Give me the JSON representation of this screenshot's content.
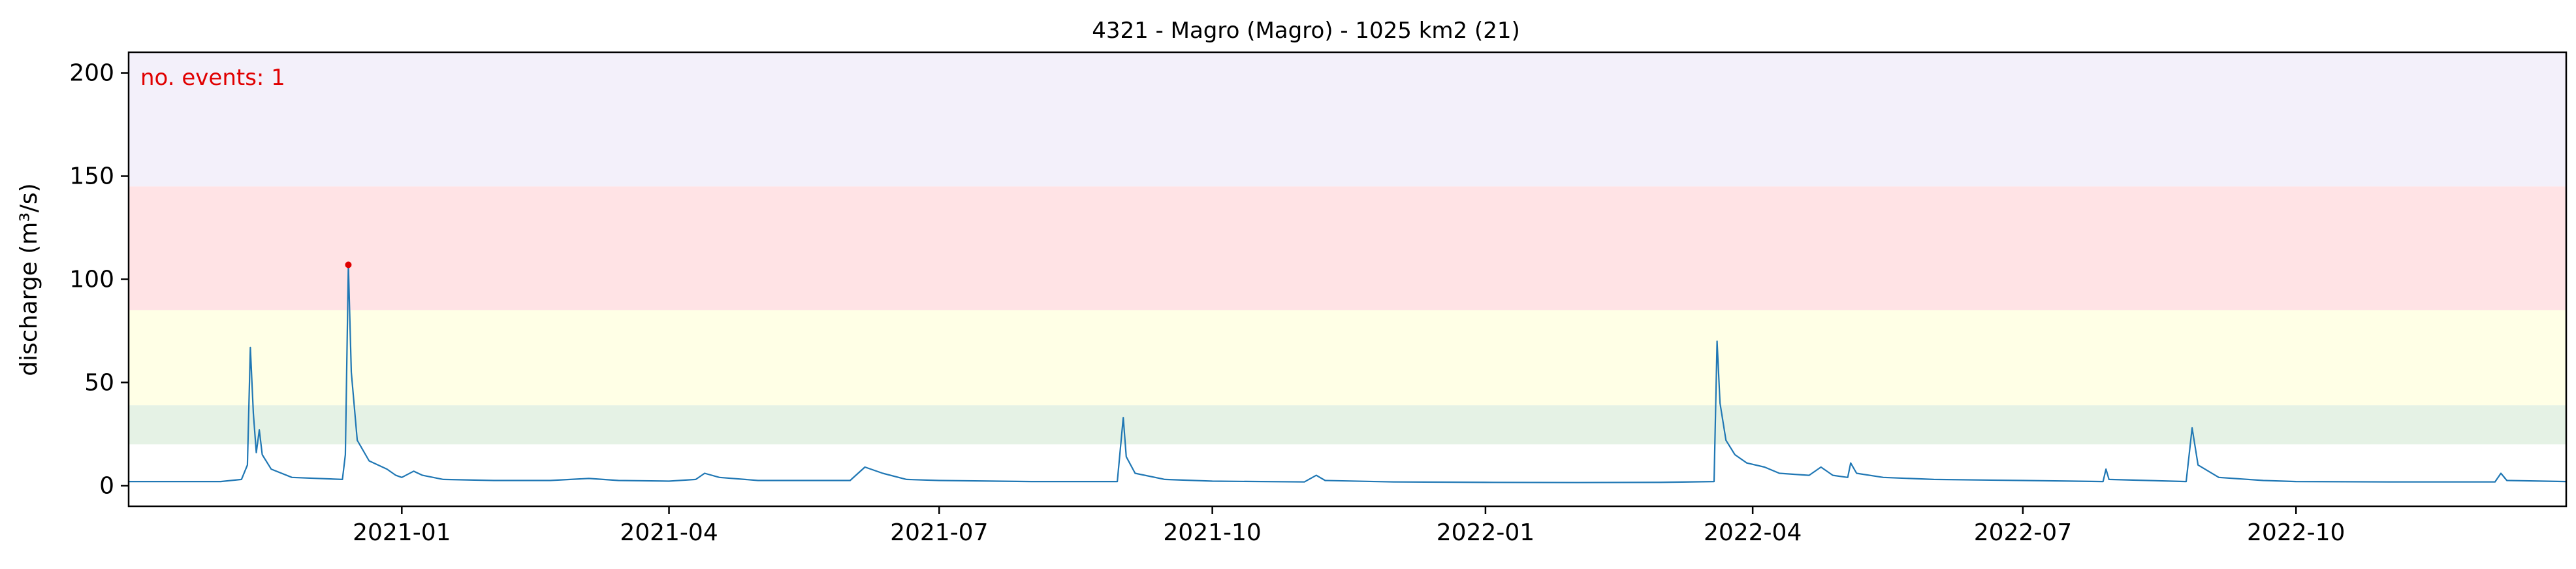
{
  "chart_data": {
    "type": "line",
    "title": "4321 - Magro (Magro) - 1025 km2 (21)",
    "xlabel": "",
    "ylabel": "discharge (m³/s)",
    "xlim": [
      "2020-10-01",
      "2022-12-31"
    ],
    "ylim": [
      -10,
      210
    ],
    "yticks": [
      0,
      50,
      100,
      150,
      200
    ],
    "xticks": [
      "2021-01-01",
      "2021-04-01",
      "2021-07-01",
      "2021-10-01",
      "2022-01-01",
      "2022-04-01",
      "2022-07-01",
      "2022-10-01"
    ],
    "xtick_labels": [
      "2021-01",
      "2021-04",
      "2021-07",
      "2021-10",
      "2022-01",
      "2022-04",
      "2022-07",
      "2022-10"
    ],
    "grid": false,
    "bands": [
      {
        "from": 20,
        "to": 39,
        "color": "#e5f2e5"
      },
      {
        "from": 39,
        "to": 85,
        "color": "#ffffe6"
      },
      {
        "from": 85,
        "to": 145,
        "color": "#ffe3e5"
      },
      {
        "from": 145,
        "to": 210,
        "color": "#f3f0fa"
      }
    ],
    "annotation": "no. events: 1",
    "series": [
      {
        "color": "#1f77b4",
        "points": [
          [
            "2020-10-01",
            2
          ],
          [
            "2020-11-01",
            2
          ],
          [
            "2020-11-08",
            3
          ],
          [
            "2020-11-10",
            10
          ],
          [
            "2020-11-11",
            67
          ],
          [
            "2020-11-12",
            35
          ],
          [
            "2020-11-13",
            16
          ],
          [
            "2020-11-14",
            27
          ],
          [
            "2020-11-15",
            15
          ],
          [
            "2020-11-18",
            8
          ],
          [
            "2020-11-25",
            4
          ],
          [
            "2020-12-12",
            3
          ],
          [
            "2020-12-13",
            15
          ],
          [
            "2020-12-14",
            107
          ],
          [
            "2020-12-15",
            55
          ],
          [
            "2020-12-17",
            22
          ],
          [
            "2020-12-21",
            12
          ],
          [
            "2020-12-27",
            8
          ],
          [
            "2020-12-30",
            5
          ],
          [
            "2021-01-01",
            4
          ],
          [
            "2021-01-05",
            7
          ],
          [
            "2021-01-08",
            5
          ],
          [
            "2021-01-15",
            3
          ],
          [
            "2021-02-01",
            2.5
          ],
          [
            "2021-02-20",
            2.5
          ],
          [
            "2021-03-05",
            3.5
          ],
          [
            "2021-03-15",
            2.5
          ],
          [
            "2021-04-01",
            2.2
          ],
          [
            "2021-04-10",
            3
          ],
          [
            "2021-04-13",
            6
          ],
          [
            "2021-04-18",
            4
          ],
          [
            "2021-05-01",
            2.5
          ],
          [
            "2021-06-01",
            2.5
          ],
          [
            "2021-06-06",
            9
          ],
          [
            "2021-06-12",
            6
          ],
          [
            "2021-06-20",
            3
          ],
          [
            "2021-07-01",
            2.5
          ],
          [
            "2021-08-01",
            2
          ],
          [
            "2021-08-30",
            2
          ],
          [
            "2021-09-01",
            33
          ],
          [
            "2021-09-02",
            14
          ],
          [
            "2021-09-05",
            6
          ],
          [
            "2021-09-15",
            3
          ],
          [
            "2021-10-01",
            2.2
          ],
          [
            "2021-11-01",
            1.8
          ],
          [
            "2021-11-05",
            5
          ],
          [
            "2021-11-08",
            2.5
          ],
          [
            "2021-12-01",
            1.8
          ],
          [
            "2022-01-01",
            1.6
          ],
          [
            "2022-02-01",
            1.5
          ],
          [
            "2022-03-01",
            1.6
          ],
          [
            "2022-03-19",
            2
          ],
          [
            "2022-03-20",
            70
          ],
          [
            "2022-03-21",
            40
          ],
          [
            "2022-03-23",
            22
          ],
          [
            "2022-03-26",
            15
          ],
          [
            "2022-03-30",
            11
          ],
          [
            "2022-04-05",
            9
          ],
          [
            "2022-04-10",
            6
          ],
          [
            "2022-04-20",
            5
          ],
          [
            "2022-04-24",
            9
          ],
          [
            "2022-04-28",
            5
          ],
          [
            "2022-05-03",
            4
          ],
          [
            "2022-05-04",
            11
          ],
          [
            "2022-05-06",
            6
          ],
          [
            "2022-05-15",
            4
          ],
          [
            "2022-06-01",
            3
          ],
          [
            "2022-07-01",
            2.5
          ],
          [
            "2022-07-28",
            2
          ],
          [
            "2022-07-29",
            8
          ],
          [
            "2022-07-30",
            3
          ],
          [
            "2022-08-25",
            2
          ],
          [
            "2022-08-27",
            28
          ],
          [
            "2022-08-29",
            10
          ],
          [
            "2022-09-05",
            4
          ],
          [
            "2022-09-20",
            2.5
          ],
          [
            "2022-10-01",
            2
          ],
          [
            "2022-11-01",
            1.8
          ],
          [
            "2022-12-07",
            1.8
          ],
          [
            "2022-12-09",
            6
          ],
          [
            "2022-12-11",
            2.5
          ],
          [
            "2022-12-31",
            2
          ]
        ]
      }
    ],
    "event_markers": [
      {
        "x": "2020-12-14",
        "y": 107,
        "color": "#e00000"
      }
    ]
  }
}
